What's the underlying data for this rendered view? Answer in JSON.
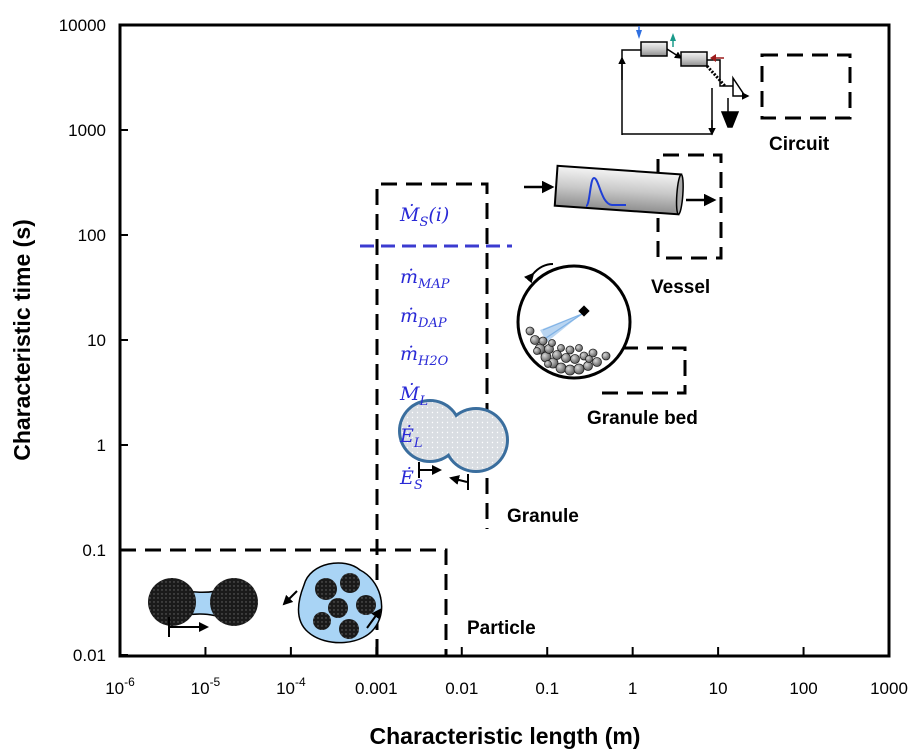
{
  "axes": {
    "x_label": "Characteristic length (m)",
    "y_label": "Characteristic time (s)",
    "x_ticks": [
      {
        "base": "10",
        "exp": "-6"
      },
      {
        "base": "10",
        "exp": "-5"
      },
      {
        "base": "10",
        "exp": "-4"
      },
      {
        "base": "0.001",
        "exp": ""
      },
      {
        "base": "0.01",
        "exp": ""
      },
      {
        "base": "0.1",
        "exp": ""
      },
      {
        "base": "1",
        "exp": ""
      },
      {
        "base": "10",
        "exp": ""
      },
      {
        "base": "100",
        "exp": ""
      },
      {
        "base": "1000",
        "exp": ""
      }
    ],
    "y_ticks": [
      "10000",
      "1000",
      "100",
      "10",
      "1",
      "0.1",
      "0.01"
    ]
  },
  "scales": {
    "circuit": "Circuit",
    "vessel": "Vessel",
    "granule_bed": "Granule bed",
    "granule": "Granule",
    "particle": "Particle"
  },
  "variables": [
    {
      "sym": "Ṁ",
      "sub": "S",
      "rest": "(i)"
    },
    {
      "sym": "ṁ",
      "sub": "MAP",
      "rest": ""
    },
    {
      "sym": "ṁ",
      "sub": "DAP",
      "rest": ""
    },
    {
      "sym": "ṁ",
      "sub": "H2O",
      "rest": ""
    },
    {
      "sym": "Ṁ",
      "sub": "L",
      "rest": ""
    },
    {
      "sym": "Ė",
      "sub": "L",
      "rest": ""
    },
    {
      "sym": "Ė",
      "sub": "S",
      "rest": ""
    }
  ],
  "colors": {
    "variables": "#2a2ad6",
    "separator": "#3b3bd0",
    "particle_fill": "#a9d4f5",
    "dark_particle": "#1a1a1a",
    "granule_fill": "#d9dde2",
    "granule_ring": "#3a6e9e",
    "spray": "#7fb2e6",
    "pulse_curve": "#1f3fd6",
    "feed_blue": "#2f6fe0",
    "feed_teal": "#1a9a8a",
    "feed_red": "#9c1b1b"
  },
  "icons": [
    "circuit-flowsheet-icon",
    "drum-vessel-icon",
    "granule-bed-drum-icon",
    "coalescing-granules-icon",
    "particle-bridge-icon",
    "particle-agglomerate-icon"
  ]
}
